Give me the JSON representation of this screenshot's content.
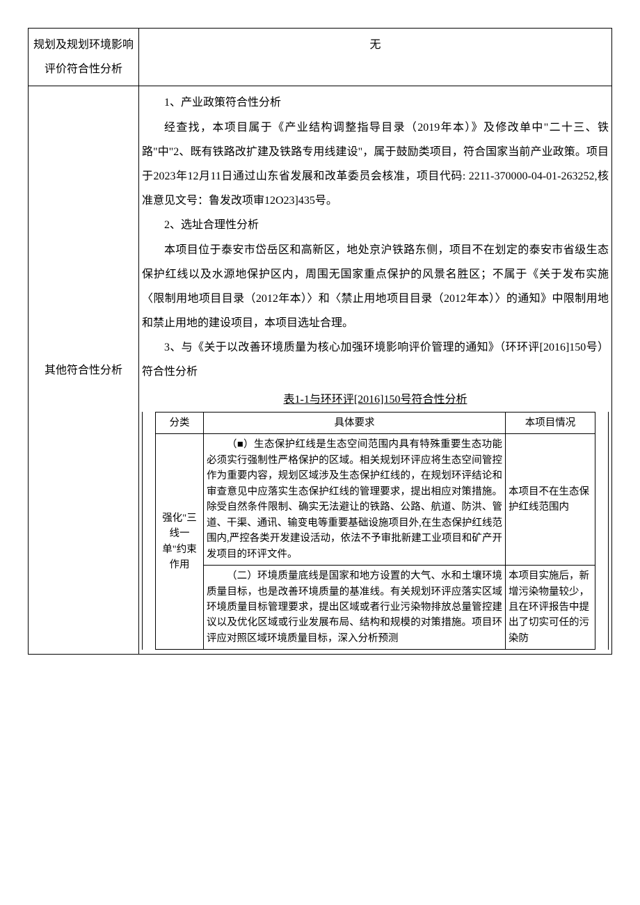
{
  "row1": {
    "label": "规划及规划环境影响评价符合性分析",
    "value": "无"
  },
  "row2": {
    "label": "其他符合性分析",
    "section1_title": "1、产业政策符合性分析",
    "section1_p1": "经查找，本项目属于《产业结构调整指导目录（2019年本）》及修改单中\"二十三、铁路\"中\"2、既有铁路改扩建及铁路专用线建设\"，属于鼓励类项目，符合国家当前产业政策。项目于2023年12月11日通过山东省发展和改革委员会核准，项目代码: 2211-370000-04-01-263252,核准意见文号：鲁发改项审12O23]435号。",
    "section2_title": "2、选址合理性分析",
    "section2_p1": "本项目位于泰安市岱岳区和高新区，地处京沪铁路东侧，项目不在划定的泰安市省级生态保护红线以及水源地保护区内，周围无国家重点保护的风景名胜区；不属于《关于发布实施〈限制用地项目目录（2012年本）〉和〈禁止用地项目目录（2012年本）〉的通知》中限制用地和禁止用地的建设项目，本项目选址合理。",
    "section3_title": "3、与《关于以改善环境质量为核心加强环境影响评价管理的通知》（环环评[2016]150号）符合性分析",
    "inner_caption": "表1-1与环环评[2016]150号符合性分析",
    "inner_table": {
      "headers": [
        "分类",
        "具体要求",
        "本项目情况"
      ],
      "category": "强化\"三线一单\"约束作用",
      "r1_req": "（■）生态保护红线是生态空间范围内具有特殊重要生态功能必须实行强制性严格保护的区域。相关规划环评应将生态空间管控作为重要内容，规划区域涉及生态保护红线的，在规划环评结论和审查意见中应落实生态保护红线的管理要求，提出相应对策措施。除受自然条件限制、确实无法避让的铁路、公路、航道、防洪、管道、干渠、通讯、输变电等重要基础设施项目外,在生态保护红线范围内,严控各类开发建设活动，依法不予审批新建工业项目和矿产开发项目的环评文件。",
      "r1_status": "本项目不在生态保护红线范围内",
      "r2_req": "（二）环境质量底线是国家和地方设置的大气、水和土壤环境质量目标，也是改善环境质量的基准线。有关规划环评应落实区域环境质量目标管理要求，提出区域或者行业污染物排放总量管控建议以及优化区域或行业发展布局、结构和规模的对策措施。项目环评应对照区域环境质量目标，深入分析预测",
      "r2_status": "本项目实施后，新增污染物量较少，且在环评报告中提出了切实可任的污染防"
    }
  }
}
